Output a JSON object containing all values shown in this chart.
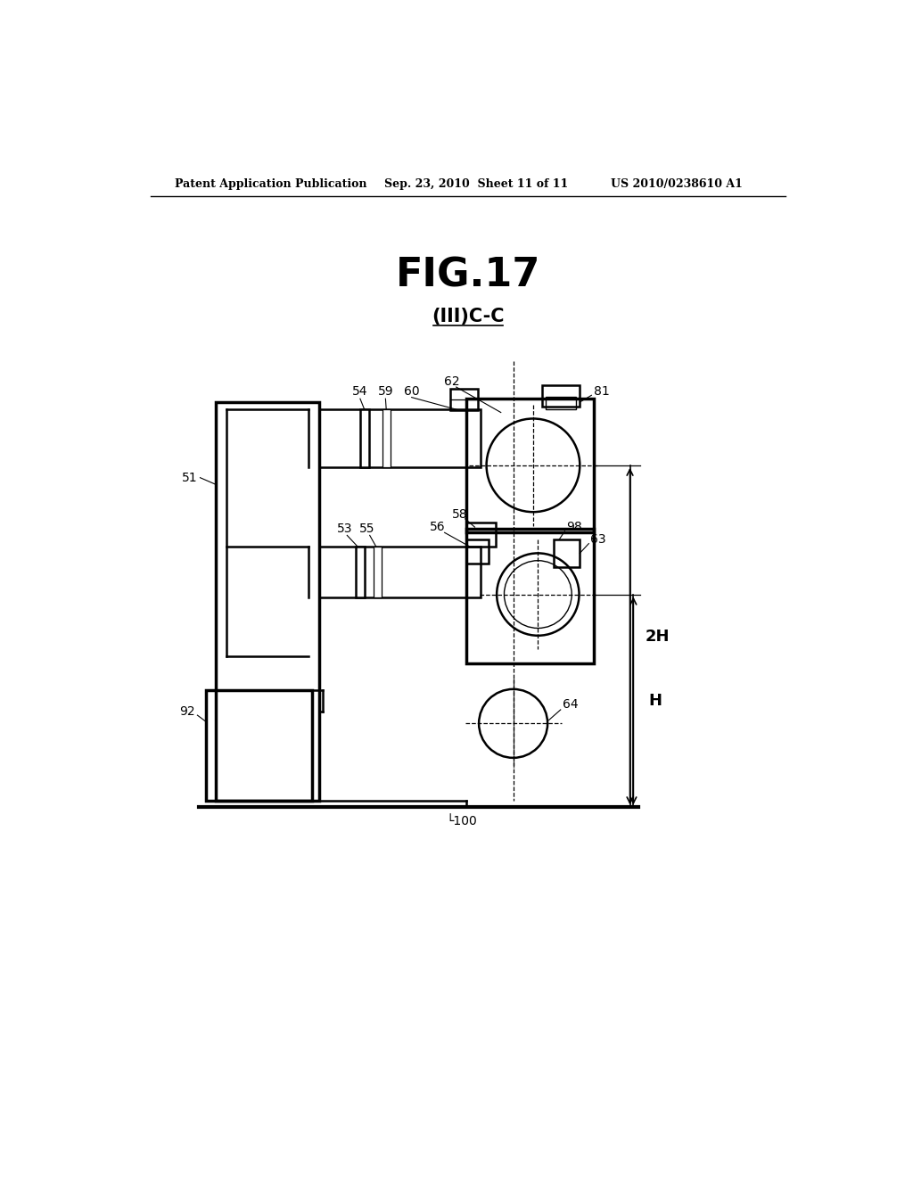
{
  "header_left": "Patent Application Publication",
  "header_center": "Sep. 23, 2010  Sheet 11 of 11",
  "header_right": "US 2010/0238610 A1",
  "fig_title": "FIG.17",
  "fig_subtitle": "(III)C-C",
  "bg_color": "#ffffff",
  "line_color": "#000000"
}
